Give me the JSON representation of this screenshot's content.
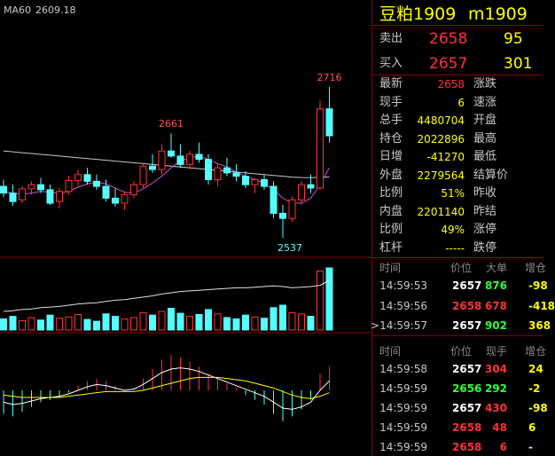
{
  "chart_data": {
    "type": "candlestick",
    "candles": [
      [
        2598,
        2606,
        2585,
        2590
      ],
      [
        2590,
        2600,
        2575,
        2580
      ],
      [
        2582,
        2598,
        2578,
        2595
      ],
      [
        2595,
        2604,
        2588,
        2600
      ],
      [
        2600,
        2608,
        2590,
        2594
      ],
      [
        2594,
        2600,
        2576,
        2578
      ],
      [
        2580,
        2596,
        2572,
        2592
      ],
      [
        2592,
        2610,
        2588,
        2605
      ],
      [
        2605,
        2618,
        2598,
        2612
      ],
      [
        2612,
        2620,
        2600,
        2604
      ],
      [
        2604,
        2612,
        2594,
        2598
      ],
      [
        2598,
        2606,
        2580,
        2584
      ],
      [
        2584,
        2596,
        2574,
        2578
      ],
      [
        2578,
        2592,
        2570,
        2588
      ],
      [
        2588,
        2604,
        2584,
        2600
      ],
      [
        2600,
        2626,
        2596,
        2622
      ],
      [
        2622,
        2636,
        2614,
        2618
      ],
      [
        2618,
        2648,
        2612,
        2640
      ],
      [
        2640,
        2661,
        2632,
        2634
      ],
      [
        2634,
        2648,
        2620,
        2624
      ],
      [
        2624,
        2640,
        2618,
        2636
      ],
      [
        2636,
        2650,
        2626,
        2630
      ],
      [
        2630,
        2636,
        2600,
        2606
      ],
      [
        2606,
        2626,
        2598,
        2620
      ],
      [
        2620,
        2632,
        2610,
        2614
      ],
      [
        2614,
        2624,
        2604,
        2610
      ],
      [
        2610,
        2616,
        2596,
        2600
      ],
      [
        2600,
        2608,
        2590,
        2606
      ],
      [
        2606,
        2612,
        2594,
        2598
      ],
      [
        2598,
        2604,
        2560,
        2566
      ],
      [
        2566,
        2576,
        2537,
        2560
      ],
      [
        2560,
        2586,
        2556,
        2582
      ],
      [
        2582,
        2604,
        2576,
        2600
      ],
      [
        2600,
        2612,
        2590,
        2596
      ],
      [
        2596,
        2700,
        2594,
        2690
      ],
      [
        2690,
        2716,
        2650,
        2658
      ]
    ],
    "up_color": "#ff3232",
    "down_color": "#54ffff",
    "ma60": {
      "name": "MA60",
      "color": "#c8c8c8",
      "values": [
        2640,
        2639,
        2638,
        2637,
        2636,
        2635,
        2634,
        2633,
        2632,
        2631,
        2630,
        2629,
        2628,
        2627,
        2626,
        2625,
        2624,
        2623,
        2622,
        2621,
        2620,
        2619,
        2618,
        2617,
        2616,
        2615,
        2614,
        2613,
        2612,
        2611,
        2610,
        2609,
        2608.5,
        2608.4,
        2608.8,
        2609.18
      ]
    },
    "ma_short": {
      "color": "#d24fd2",
      "values": [
        2592,
        2590,
        2589,
        2590,
        2592,
        2591,
        2590,
        2592,
        2597,
        2601,
        2603,
        2601,
        2596,
        2591,
        2590,
        2595,
        2602,
        2610,
        2620,
        2628,
        2632,
        2634,
        2630,
        2625,
        2621,
        2615,
        2610,
        2606,
        2602,
        2594,
        2584,
        2578,
        2578,
        2584,
        2600,
        2620
      ]
    },
    "volume": [
      18,
      22,
      15,
      20,
      16,
      24,
      19,
      21,
      25,
      17,
      14,
      26,
      22,
      18,
      20,
      28,
      24,
      30,
      35,
      27,
      22,
      25,
      33,
      26,
      20,
      18,
      24,
      21,
      19,
      36,
      40,
      28,
      26,
      22,
      95,
      100
    ],
    "open_interest": {
      "color": "#e0e0e0",
      "values": [
        30,
        31,
        33,
        34,
        36,
        37,
        38,
        40,
        42,
        43,
        44,
        46,
        48,
        49,
        51,
        53,
        55,
        58,
        60,
        62,
        63,
        64,
        65,
        66,
        67,
        68,
        68,
        69,
        70,
        71,
        70,
        68,
        69,
        70,
        72,
        80
      ]
    },
    "macd": [
      -20,
      -22,
      -18,
      -14,
      -10,
      -8,
      -6,
      -2,
      4,
      8,
      10,
      8,
      4,
      0,
      2,
      10,
      18,
      26,
      30,
      28,
      24,
      20,
      14,
      10,
      6,
      2,
      -4,
      -8,
      -12,
      -20,
      -26,
      -22,
      -16,
      -8,
      14,
      20
    ],
    "dif": {
      "color": "#ffffff",
      "values": [
        -10,
        -12,
        -11,
        -9,
        -7,
        -6,
        -5,
        -3,
        0,
        3,
        5,
        4,
        2,
        0,
        1,
        5,
        10,
        15,
        18,
        19,
        18,
        16,
        13,
        10,
        7,
        4,
        1,
        -2,
        -5,
        -10,
        -15,
        -16,
        -14,
        -10,
        0,
        8
      ]
    },
    "dea": {
      "color": "#ffff00",
      "values": [
        -4,
        -5,
        -6,
        -6,
        -6,
        -6,
        -6,
        -5,
        -4,
        -3,
        -2,
        -1,
        -1,
        -1,
        -1,
        0,
        2,
        4,
        6,
        8,
        10,
        11,
        11,
        11,
        10,
        9,
        8,
        6,
        4,
        2,
        -1,
        -4,
        -6,
        -7,
        -5,
        -2
      ]
    }
  },
  "header": {
    "name": "豆粕1909",
    "code": "m1909"
  },
  "book": [
    {
      "label": "卖出",
      "price": "2658",
      "qty": "95"
    },
    {
      "label": "买入",
      "price": "2657",
      "qty": "301"
    }
  ],
  "stats": [
    [
      "最新",
      "2658",
      "涨跌"
    ],
    [
      "现手",
      "6",
      "速涨"
    ],
    [
      "总手",
      "4480704",
      "开盘"
    ],
    [
      "持仓",
      "2022896",
      "最高"
    ],
    [
      "日增",
      "-41270",
      "最低"
    ],
    [
      "外盘",
      "2279564",
      "结算价"
    ],
    [
      "比例",
      "51%",
      "昨收"
    ],
    [
      "内盘",
      "2201140",
      "昨结"
    ],
    [
      "比例",
      "49%",
      "涨停"
    ],
    [
      "杠杆",
      "-----",
      "跌停"
    ]
  ],
  "trades1": {
    "header": [
      "时间",
      "价位",
      "大单",
      "增仓"
    ],
    "rows": [
      {
        "time": "14:59:53",
        "price": "2657",
        "price_color": "#ffffff",
        "vol": "876",
        "vol_color": "#32ff32",
        "chg": "-98"
      },
      {
        "time": "14:59:56",
        "price": "2658",
        "price_color": "#ff3232",
        "vol": "678",
        "vol_color": "#ff3232",
        "chg": "-418"
      },
      {
        "time": ">14:59:57",
        "price": "2657",
        "price_color": "#ffffff",
        "vol": "902",
        "vol_color": "#32ff32",
        "chg": "368"
      }
    ]
  },
  "trades2": {
    "header": [
      "时间",
      "价位",
      "现手",
      "增仓"
    ],
    "rows": [
      {
        "time": "14:59:58",
        "price": "2657",
        "price_color": "#ffffff",
        "vol": "304",
        "vol_color": "#ff3232",
        "chg": "24"
      },
      {
        "time": "14:59:59",
        "price": "2656",
        "price_color": "#32ff32",
        "vol": "292",
        "vol_color": "#32ff32",
        "chg": "-2"
      },
      {
        "time": "14:59:59",
        "price": "2657",
        "price_color": "#ffffff",
        "vol": "430",
        "vol_color": "#ff3232",
        "chg": "-98"
      },
      {
        "time": "14:59:59",
        "price": "2658",
        "price_color": "#ff3232",
        "vol": "48",
        "vol_color": "#ff3232",
        "chg": "6"
      },
      {
        "time": "14:59:59",
        "price": "2658",
        "price_color": "#ff3232",
        "vol": "6",
        "vol_color": "#ff3232",
        "chg": "-"
      }
    ]
  }
}
